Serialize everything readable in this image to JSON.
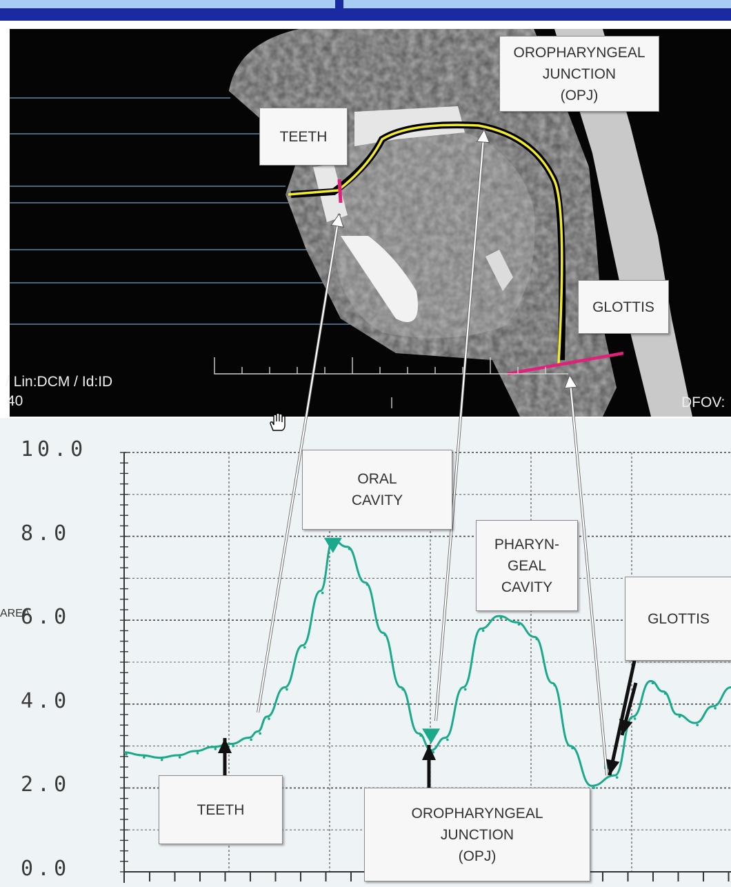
{
  "scan": {
    "overlay_left": "/ Lin:DCM / Id:ID",
    "overlay_left_2": "40",
    "overlay_right": "DFOV:",
    "labels": {
      "teeth": "TEETH",
      "opj": "OROPHARYNGEAL\nJUNCTION\n(OPJ)",
      "glottis": "GLOTTIS"
    }
  },
  "plot_labels": {
    "oral_cavity": "ORAL\nCAVITY",
    "pharyngeal_cavity": "PHARYN-\nGEAL\nCAVITY",
    "glottis": "GLOTTIS",
    "teeth": "TEETH",
    "opj": "OROPHARYNGEAL\nJUNCTION\n(OPJ)"
  },
  "colors": {
    "header_light": "#a9cdf2",
    "header_dark": "#1a2aa0",
    "curve": "#1aa98a",
    "airway_line": "#f2ea2a",
    "marker": "#e0207a"
  },
  "chart_data": {
    "type": "line",
    "ylabel": "AREA",
    "ylim": [
      0,
      10
    ],
    "y_ticks": [
      "10.0",
      "8.0",
      "6.0",
      "4.0",
      "2.0",
      "0.0"
    ],
    "grid": true,
    "series": [
      {
        "x": [
          0,
          10,
          20,
          30,
          40,
          50,
          60,
          70,
          75,
          80,
          90,
          100,
          110,
          117,
          125,
          135,
          145,
          155,
          165,
          172,
          180,
          190,
          200,
          210,
          220,
          230,
          240,
          250,
          262,
          275,
          285,
          295,
          302,
          310,
          320,
          330,
          340
        ],
        "y": [
          2.85,
          2.78,
          2.72,
          2.78,
          2.88,
          2.98,
          3.05,
          3.2,
          3.35,
          3.7,
          4.4,
          5.4,
          6.7,
          7.9,
          7.75,
          6.9,
          5.7,
          4.4,
          3.3,
          2.9,
          3.2,
          4.4,
          5.8,
          6.1,
          5.95,
          5.6,
          4.5,
          3.0,
          2.05,
          2.3,
          3.7,
          4.55,
          4.3,
          3.75,
          3.55,
          3.95,
          4.4
        ]
      }
    ],
    "markers": {
      "teeth": {
        "x": 75,
        "y": 3.1
      },
      "oral_cavity": {
        "x": 117,
        "y": 7.8
      },
      "opj": {
        "x": 172,
        "y": 3.25
      },
      "glottis": {
        "x": 262,
        "y": 2.2
      }
    }
  }
}
